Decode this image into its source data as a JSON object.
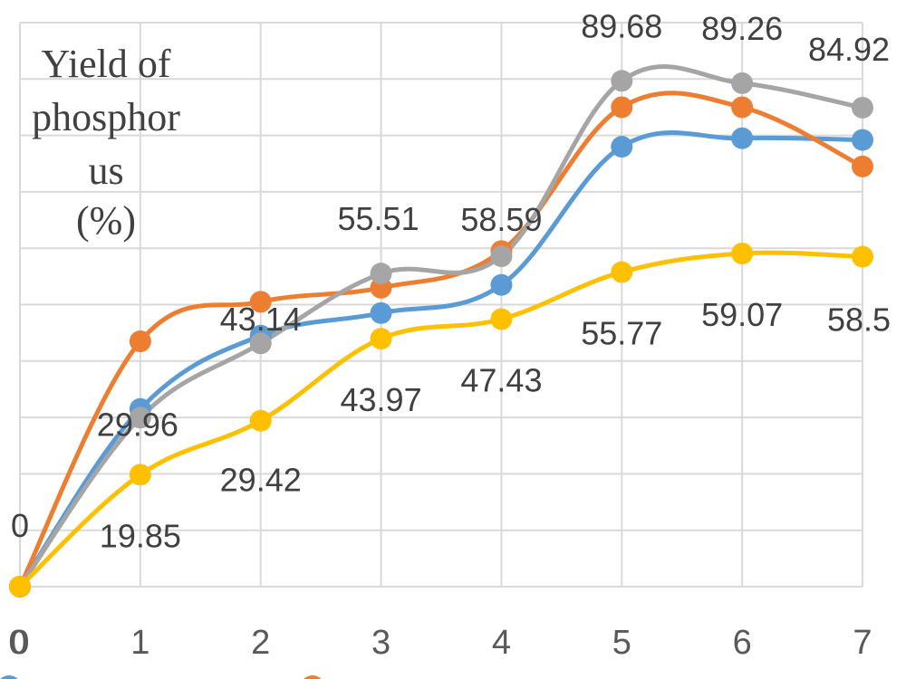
{
  "chart_data": {
    "type": "line",
    "title": "",
    "xlabel": "",
    "ylabel_lines": [
      "Yield of",
      "phosphor",
      "us",
      "(%)"
    ],
    "x": [
      0,
      1,
      2,
      3,
      4,
      5,
      6,
      7
    ],
    "xlim": [
      0,
      7
    ],
    "ylim": [
      0,
      100
    ],
    "grid": true,
    "smooth": true,
    "series": [
      {
        "color": "#5b9bd5",
        "values": [
          0,
          31.5,
          44.5,
          48.5,
          53.5,
          78,
          79.5,
          79.2
        ]
      },
      {
        "color": "#ed7d31",
        "values": [
          0,
          43.5,
          50.5,
          53,
          59.5,
          85,
          85,
          74.5
        ]
      },
      {
        "color": "#a5a5a5",
        "values": [
          0,
          29.96,
          43.14,
          55.51,
          58.59,
          89.68,
          89.26,
          84.92
        ],
        "labels_shown": true
      },
      {
        "color": "#ffc000",
        "values": [
          0,
          19.85,
          29.42,
          43.97,
          47.43,
          55.77,
          59.07,
          58.5
        ],
        "labels_shown": true
      }
    ],
    "data_labels": [
      {
        "series": 2,
        "index": 0,
        "text": "0"
      },
      {
        "series": 3,
        "index": 0,
        "text": "0"
      },
      {
        "series": 2,
        "index": 1,
        "text": "29.96"
      },
      {
        "series": 2,
        "index": 2,
        "text": "43.14"
      },
      {
        "series": 2,
        "index": 3,
        "text": "55.51"
      },
      {
        "series": 2,
        "index": 4,
        "text": "58.59"
      },
      {
        "series": 2,
        "index": 5,
        "text": "89.68"
      },
      {
        "series": 2,
        "index": 6,
        "text": "89.26"
      },
      {
        "series": 2,
        "index": 7,
        "text": "84.92"
      },
      {
        "series": 3,
        "index": 1,
        "text": "19.85"
      },
      {
        "series": 3,
        "index": 2,
        "text": "29.42"
      },
      {
        "series": 3,
        "index": 3,
        "text": "43.97"
      },
      {
        "series": 3,
        "index": 4,
        "text": "47.43"
      },
      {
        "series": 3,
        "index": 5,
        "text": "55.77"
      },
      {
        "series": 3,
        "index": 6,
        "text": "59.07"
      },
      {
        "series": 3,
        "index": 7,
        "text": "58.5"
      }
    ],
    "x_tick_labels": [
      "0",
      "1",
      "2",
      "3",
      "4",
      "5",
      "6",
      "7"
    ],
    "extra_tick_label": "0"
  }
}
